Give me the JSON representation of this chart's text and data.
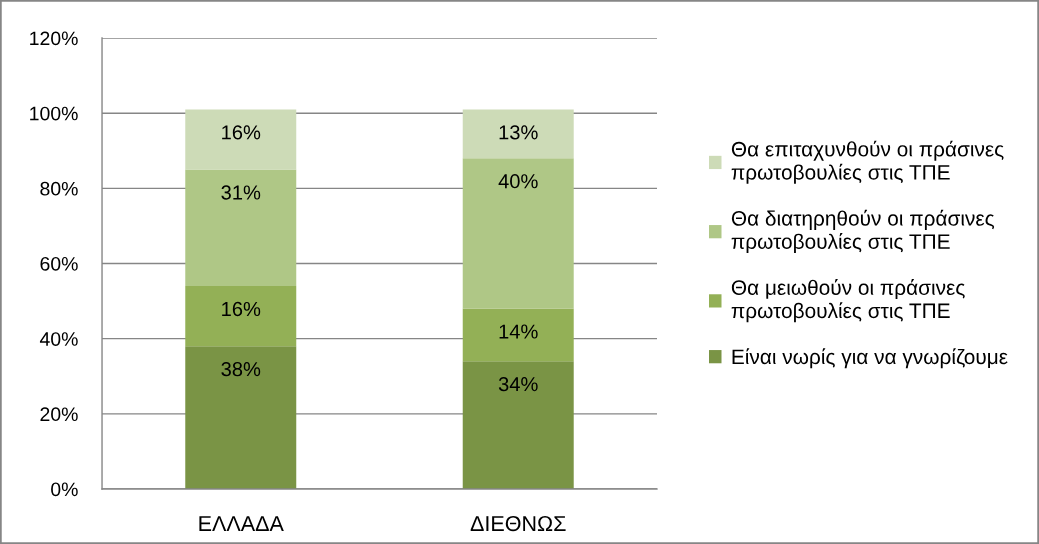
{
  "chart_data": {
    "type": "bar",
    "stacked": true,
    "categories": [
      "ΕΛΛΑΔΑ",
      "ΔΙΕΘΝΩΣ"
    ],
    "series": [
      {
        "name": "Είναι νωρίς για να γνωρίζουμε",
        "color": "#7a9445",
        "values": [
          38,
          34
        ],
        "value_labels": [
          "38%",
          "34%"
        ]
      },
      {
        "name": "Θα μειωθούν οι πράσινες\nπρωτοβουλίες στις ΤΠΕ",
        "color": "#93b056",
        "values": [
          16,
          14
        ],
        "value_labels": [
          "16%",
          "14%"
        ]
      },
      {
        "name": "Θα διατηρηθούν οι πράσινες\nπρωτοβουλίες στις ΤΠΕ",
        "color": "#afc786",
        "values": [
          31,
          40
        ],
        "value_labels": [
          "31%",
          "40%"
        ]
      },
      {
        "name": "Θα επιταχυνθούν οι πράσινες\nπρωτοβουλίες στις ΤΠΕ",
        "color": "#cddbb7",
        "values": [
          16,
          13
        ],
        "value_labels": [
          "16%",
          "13%"
        ]
      }
    ],
    "ylim": [
      0,
      120
    ],
    "yticks": [
      {
        "value": 0,
        "label": "0%"
      },
      {
        "value": 20,
        "label": "20%"
      },
      {
        "value": 40,
        "label": "40%"
      },
      {
        "value": 60,
        "label": "60%"
      },
      {
        "value": 80,
        "label": "80%"
      },
      {
        "value": 100,
        "label": "100%"
      },
      {
        "value": 120,
        "label": "120%"
      }
    ],
    "grid": "y",
    "legend": "right"
  }
}
